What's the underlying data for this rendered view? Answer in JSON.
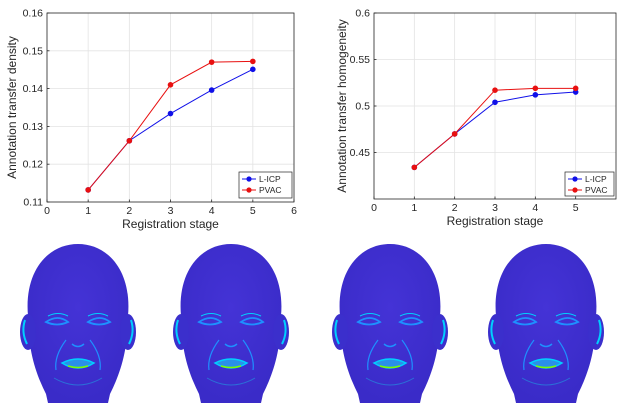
{
  "chart_data": [
    {
      "type": "line",
      "title": "",
      "xlabel": "Registration stage",
      "ylabel": "Annotation transfer density",
      "xlim": [
        0,
        6
      ],
      "ylim": [
        0.11,
        0.16
      ],
      "xticks": [
        "0",
        "1",
        "2",
        "3",
        "4",
        "5",
        "6"
      ],
      "yticks": [
        "0.11",
        "0.12",
        "0.13",
        "0.14",
        "0.15",
        "0.16"
      ],
      "grid": true,
      "legend_position": "bottom-right",
      "x": [
        1,
        2,
        3,
        4,
        5
      ],
      "series": [
        {
          "name": "L-ICP",
          "color": "#1010e8",
          "values": [
            0.1132,
            0.1262,
            0.1334,
            0.1396,
            0.1451
          ]
        },
        {
          "name": "PVAC",
          "color": "#e81010",
          "values": [
            0.1132,
            0.1262,
            0.141,
            0.147,
            0.1472
          ]
        }
      ]
    },
    {
      "type": "line",
      "title": "",
      "xlabel": "Registration stage",
      "ylabel": "Annotation transfer homogeneity",
      "xlim": [
        0,
        6
      ],
      "ylim": [
        0.4,
        0.6
      ],
      "xticks": [
        "0",
        "1",
        "2",
        "3",
        "4",
        "5"
      ],
      "yticks": [
        "0.45",
        "0.5",
        "0.55",
        "0.6"
      ],
      "grid": true,
      "legend_position": "bottom-right",
      "x": [
        1,
        2,
        3,
        4,
        5
      ],
      "series": [
        {
          "name": "L-ICP",
          "color": "#1010e8",
          "values": [
            0.434,
            0.47,
            0.504,
            0.512,
            0.515
          ]
        },
        {
          "name": "PVAC",
          "color": "#e81010",
          "values": [
            0.434,
            0.47,
            0.517,
            0.519,
            0.519
          ]
        }
      ]
    }
  ],
  "faces": {
    "count": 4,
    "base_color": "#3a2bc8",
    "highlight_colors": [
      "#1e90ff",
      "#00d0ff",
      "#7cfc00"
    ],
    "icon": "face-heatmap-icon"
  }
}
